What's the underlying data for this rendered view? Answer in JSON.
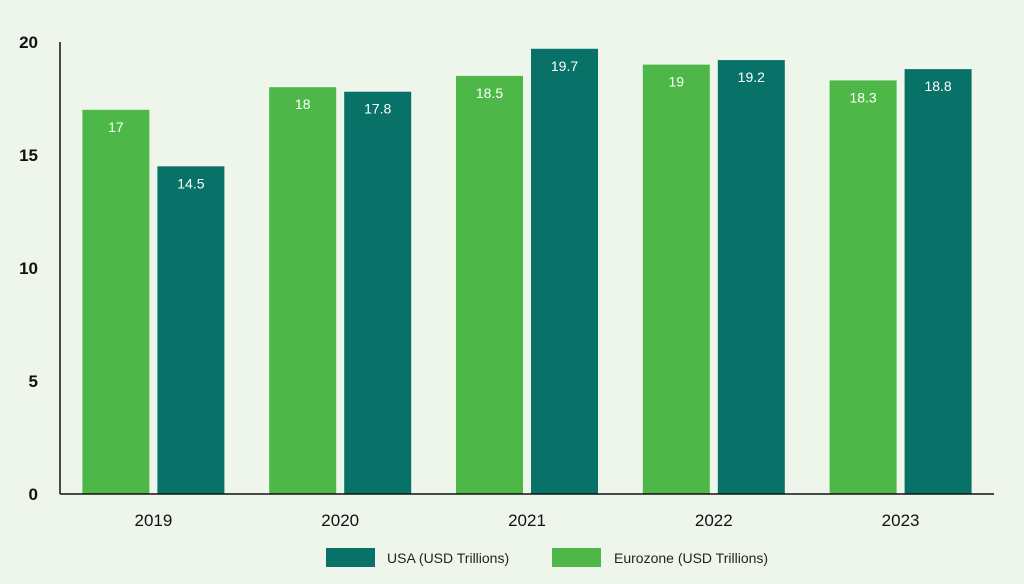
{
  "chart_data": {
    "type": "bar",
    "title": "",
    "xlabel": "",
    "ylabel": "",
    "ylim": [
      0,
      20
    ],
    "yticks": [
      0,
      5,
      10,
      15,
      20
    ],
    "grid": false,
    "categories": [
      "2019",
      "2020",
      "2021",
      "2022",
      "2023"
    ],
    "series": [
      {
        "name": "Eurozone (USD Trillions)",
        "color": "#4db848",
        "values": [
          17,
          18,
          18.5,
          19,
          18.3
        ]
      },
      {
        "name": "USA (USD Trillions)",
        "color": "#087268",
        "values": [
          14.5,
          17.8,
          19.7,
          19.2,
          18.8
        ]
      }
    ],
    "data_labels": [
      [
        "17",
        "18",
        "18.5",
        "19",
        "18.3"
      ],
      [
        "14.5",
        "17.8",
        "19.7",
        "19.2",
        "18.8"
      ]
    ],
    "legend": {
      "position": "bottom",
      "order": [
        1,
        0
      ]
    }
  }
}
